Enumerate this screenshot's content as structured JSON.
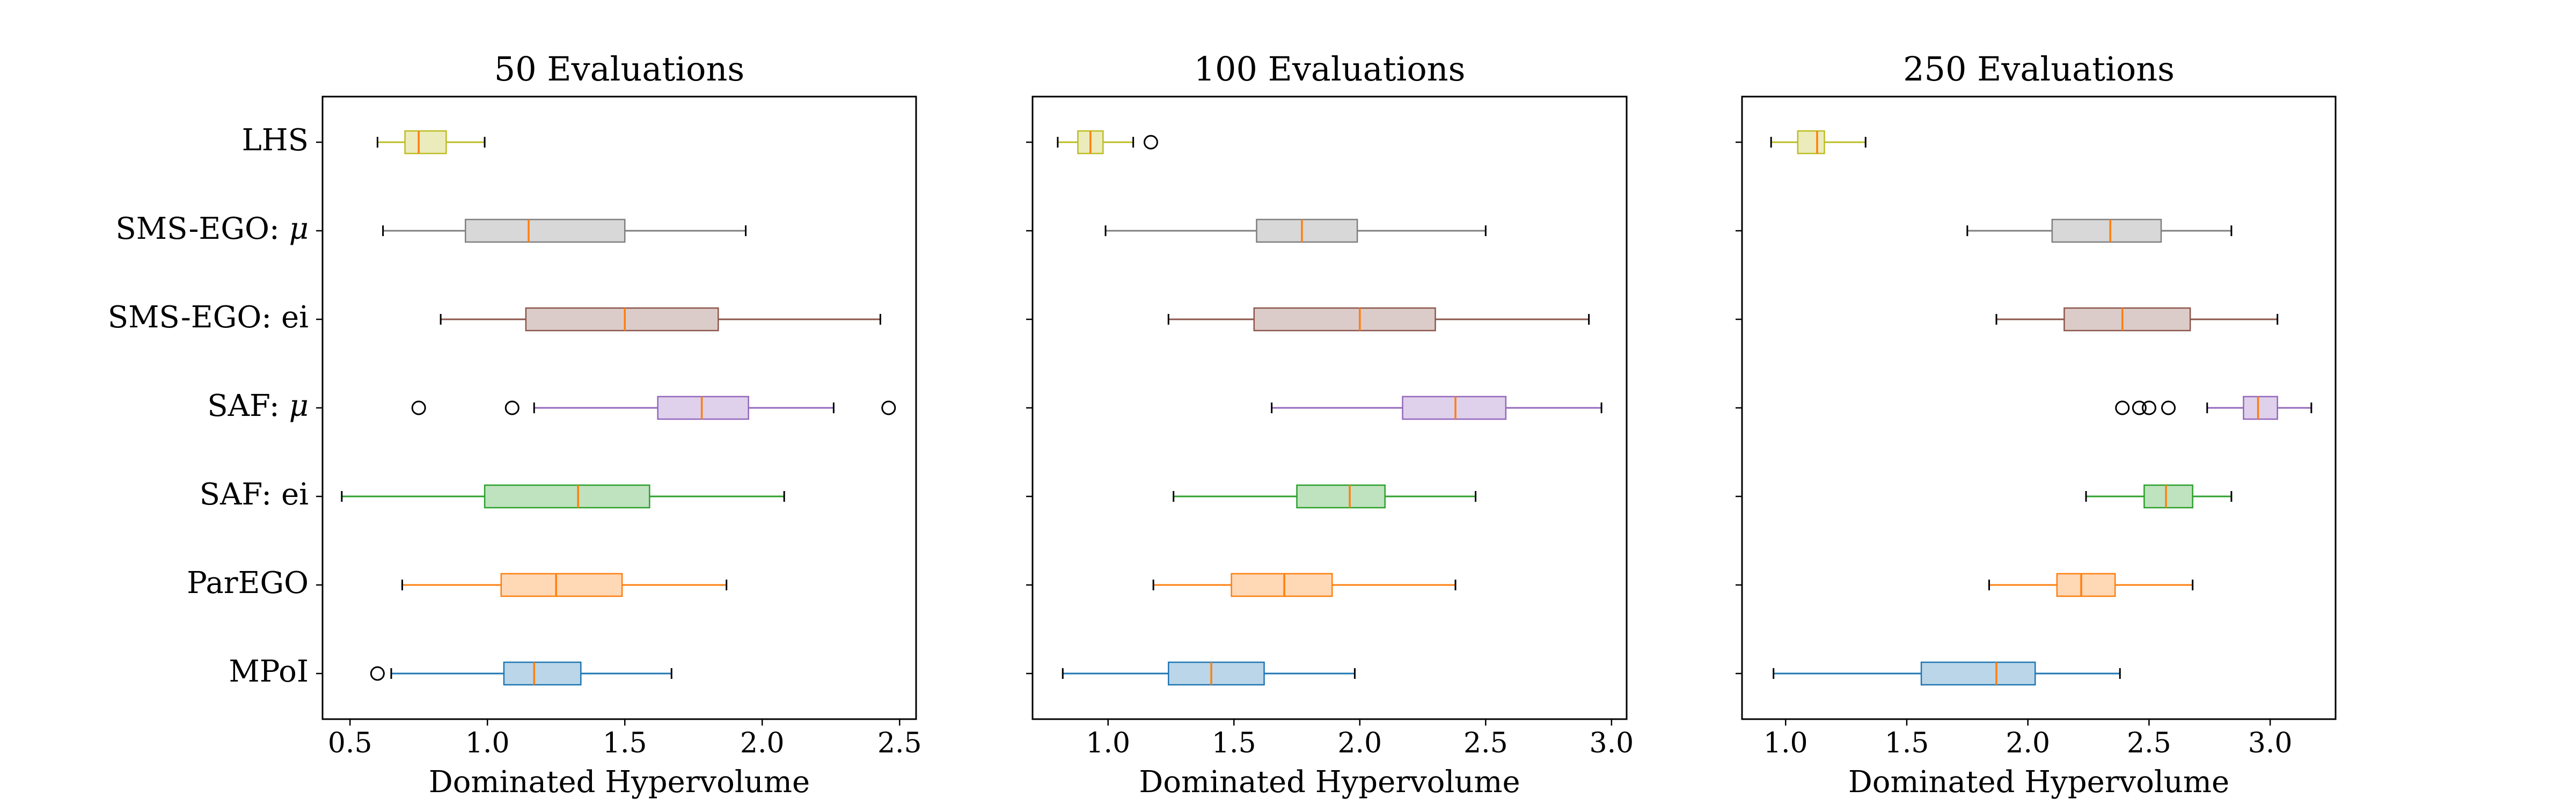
{
  "chart_data": {
    "type": "boxplot",
    "orientation": "horizontal",
    "categories": [
      "LHS",
      "SMS-EGO: μ",
      "SMS-EGO: ei",
      "SAF: μ",
      "SAF: ei",
      "ParEGO",
      "MPoI"
    ],
    "category_label_parts": [
      [
        "LHS"
      ],
      [
        "SMS-EGO: ",
        "μ"
      ],
      [
        "SMS-EGO: ei"
      ],
      [
        "SAF: ",
        "μ"
      ],
      [
        "SAF: ei"
      ],
      [
        "ParEGO"
      ],
      [
        "MPoI"
      ]
    ],
    "category_colors": [
      "#bcbd22",
      "#7f7f7f",
      "#8c564b",
      "#9467bd",
      "#2ca02c",
      "#ff7f0e",
      "#1f77b4"
    ],
    "median_color": "#ff7f0e",
    "grid": false,
    "panels": [
      {
        "title": "50 Evaluations",
        "xlabel": "Dominated Hypervolume",
        "xlim": [
          0.4,
          2.56
        ],
        "xticks": [
          0.5,
          1.0,
          1.5,
          2.0,
          2.5
        ],
        "xtick_labels": [
          "0.5",
          "1.0",
          "1.5",
          "2.0",
          "2.5"
        ],
        "boxes": [
          {
            "category": "LHS",
            "whisker_low": 0.6,
            "q1": 0.7,
            "median": 0.75,
            "q3": 0.85,
            "whisker_high": 0.99,
            "outliers": []
          },
          {
            "category": "SMS-EGO: μ",
            "whisker_low": 0.62,
            "q1": 0.92,
            "median": 1.15,
            "q3": 1.5,
            "whisker_high": 1.94,
            "outliers": []
          },
          {
            "category": "SMS-EGO: ei",
            "whisker_low": 0.83,
            "q1": 1.14,
            "median": 1.5,
            "q3": 1.84,
            "whisker_high": 2.43,
            "outliers": []
          },
          {
            "category": "SAF: μ",
            "whisker_low": 1.17,
            "q1": 1.62,
            "median": 1.78,
            "q3": 1.95,
            "whisker_high": 2.26,
            "outliers": [
              0.75,
              1.09,
              2.46
            ]
          },
          {
            "category": "SAF: ei",
            "whisker_low": 0.47,
            "q1": 0.99,
            "median": 1.33,
            "q3": 1.59,
            "whisker_high": 2.08,
            "outliers": []
          },
          {
            "category": "ParEGO",
            "whisker_low": 0.69,
            "q1": 1.05,
            "median": 1.25,
            "q3": 1.49,
            "whisker_high": 1.87,
            "outliers": []
          },
          {
            "category": "MPoI",
            "whisker_low": 0.65,
            "q1": 1.06,
            "median": 1.17,
            "q3": 1.34,
            "whisker_high": 1.67,
            "outliers": [
              0.6
            ]
          }
        ]
      },
      {
        "title": "100 Evaluations",
        "xlabel": "Dominated Hypervolume",
        "xlim": [
          0.7,
          3.06
        ],
        "xticks": [
          1.0,
          1.5,
          2.0,
          2.5,
          3.0
        ],
        "xtick_labels": [
          "1.0",
          "1.5",
          "2.0",
          "2.5",
          "3.0"
        ],
        "boxes": [
          {
            "category": "LHS",
            "whisker_low": 0.8,
            "q1": 0.88,
            "median": 0.93,
            "q3": 0.98,
            "whisker_high": 1.1,
            "outliers": [
              1.17
            ]
          },
          {
            "category": "SMS-EGO: μ",
            "whisker_low": 0.99,
            "q1": 1.59,
            "median": 1.77,
            "q3": 1.99,
            "whisker_high": 2.5,
            "outliers": []
          },
          {
            "category": "SMS-EGO: ei",
            "whisker_low": 1.24,
            "q1": 1.58,
            "median": 2.0,
            "q3": 2.3,
            "whisker_high": 2.91,
            "outliers": []
          },
          {
            "category": "SAF: μ",
            "whisker_low": 1.65,
            "q1": 2.17,
            "median": 2.38,
            "q3": 2.58,
            "whisker_high": 2.96,
            "outliers": []
          },
          {
            "category": "SAF: ei",
            "whisker_low": 1.26,
            "q1": 1.75,
            "median": 1.96,
            "q3": 2.1,
            "whisker_high": 2.46,
            "outliers": []
          },
          {
            "category": "ParEGO",
            "whisker_low": 1.18,
            "q1": 1.49,
            "median": 1.7,
            "q3": 1.89,
            "whisker_high": 2.38,
            "outliers": []
          },
          {
            "category": "MPoI",
            "whisker_low": 0.82,
            "q1": 1.24,
            "median": 1.41,
            "q3": 1.62,
            "whisker_high": 1.98,
            "outliers": []
          }
        ]
      },
      {
        "title": "250 Evaluations",
        "xlabel": "Dominated Hypervolume",
        "xlim": [
          0.82,
          3.27
        ],
        "xticks": [
          1.0,
          1.5,
          2.0,
          2.5,
          3.0
        ],
        "xtick_labels": [
          "1.0",
          "1.5",
          "2.0",
          "2.5",
          "3.0"
        ],
        "boxes": [
          {
            "category": "LHS",
            "whisker_low": 0.94,
            "q1": 1.05,
            "median": 1.13,
            "q3": 1.16,
            "whisker_high": 1.33,
            "outliers": []
          },
          {
            "category": "SMS-EGO: μ",
            "whisker_low": 1.75,
            "q1": 2.1,
            "median": 2.34,
            "q3": 2.55,
            "whisker_high": 2.84,
            "outliers": []
          },
          {
            "category": "SMS-EGO: ei",
            "whisker_low": 1.87,
            "q1": 2.15,
            "median": 2.39,
            "q3": 2.67,
            "whisker_high": 3.03,
            "outliers": []
          },
          {
            "category": "SAF: μ",
            "whisker_low": 2.74,
            "q1": 2.89,
            "median": 2.95,
            "q3": 3.03,
            "whisker_high": 3.17,
            "outliers": [
              2.39,
              2.46,
              2.5,
              2.58
            ]
          },
          {
            "category": "SAF: ei",
            "whisker_low": 2.24,
            "q1": 2.48,
            "median": 2.57,
            "q3": 2.68,
            "whisker_high": 2.84,
            "outliers": []
          },
          {
            "category": "ParEGO",
            "whisker_low": 1.84,
            "q1": 2.12,
            "median": 2.22,
            "q3": 2.36,
            "whisker_high": 2.68,
            "outliers": []
          },
          {
            "category": "MPoI",
            "whisker_low": 0.95,
            "q1": 1.56,
            "median": 1.87,
            "q3": 2.03,
            "whisker_high": 2.38,
            "outliers": []
          }
        ]
      }
    ]
  }
}
